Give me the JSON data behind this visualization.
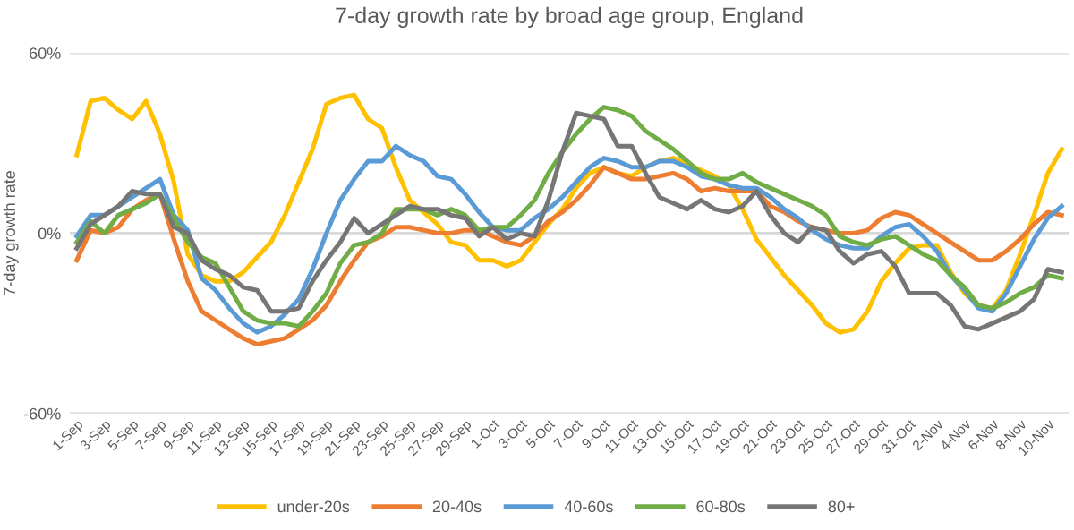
{
  "chart_data": {
    "type": "line",
    "title": "7-day growth rate by broad age group, England",
    "ylabel": "7-day growth rate",
    "categories": [
      "1-Sep",
      null,
      "3-Sep",
      null,
      "5-Sep",
      null,
      "7-Sep",
      null,
      "9-Sep",
      null,
      "11-Sep",
      null,
      "13-Sep",
      null,
      "15-Sep",
      null,
      "17-Sep",
      null,
      "19-Sep",
      null,
      "21-Sep",
      null,
      "23-Sep",
      null,
      "25-Sep",
      null,
      "27-Sep",
      null,
      "29-Sep",
      null,
      "1-Oct",
      null,
      "3-Oct",
      null,
      "5-Oct",
      null,
      "7-Oct",
      null,
      "9-Oct",
      null,
      "11-Oct",
      null,
      "13-Oct",
      null,
      "15-Oct",
      null,
      "17-Oct",
      null,
      "19-Oct",
      null,
      "21-Oct",
      null,
      "23-Oct",
      null,
      "25-Oct",
      null,
      "27-Oct",
      null,
      "29-Oct",
      null,
      "31-Oct",
      null,
      "2-Nov",
      null,
      "4-Nov",
      null,
      "6-Nov",
      null,
      "8-Nov",
      null,
      "10-Nov",
      null
    ],
    "series": [
      {
        "name": "under-20s",
        "color": "#ffc000",
        "values": [
          26,
          44,
          45,
          41,
          38,
          44,
          33,
          17,
          -7,
          -14,
          -16,
          -16,
          -13,
          -8,
          -3,
          6,
          17,
          28,
          43,
          45,
          46,
          38,
          35,
          22,
          11,
          7,
          3,
          -3,
          -4,
          -9,
          -9,
          -11,
          -9,
          -3,
          3,
          8,
          15,
          20,
          22,
          20,
          19,
          22,
          24,
          25,
          23,
          21,
          19,
          16,
          8,
          -2,
          -8,
          -14,
          -19,
          -24,
          -30,
          -33,
          -32,
          -26,
          -16,
          -10,
          -5,
          -4,
          -4,
          -13,
          -20,
          -24,
          -25,
          -19,
          -7,
          6,
          20,
          28
        ]
      },
      {
        "name": "20-40s",
        "color": "#ed7d31",
        "values": [
          -9,
          1,
          0,
          2,
          8,
          11,
          13,
          -2,
          -16,
          -26,
          -29,
          -32,
          -35,
          -37,
          -36,
          -35,
          -32,
          -29,
          -24,
          -16,
          -9,
          -3,
          -1,
          2,
          2,
          1,
          0,
          0,
          1,
          1,
          -1,
          -3,
          -4,
          -1,
          4,
          7,
          11,
          16,
          22,
          20,
          18,
          18,
          19,
          20,
          18,
          14,
          15,
          14,
          14,
          14,
          9,
          7,
          4,
          2,
          1,
          0,
          0,
          1,
          5,
          7,
          6,
          3,
          0,
          -3,
          -6,
          -9,
          -9,
          -6,
          -2,
          3,
          7,
          6
        ]
      },
      {
        "name": "40-60s",
        "color": "#5b9bd5",
        "values": [
          -1,
          6,
          6,
          9,
          12,
          15,
          18,
          6,
          1,
          -15,
          -19,
          -25,
          -30,
          -33,
          -31,
          -27,
          -22,
          -12,
          0,
          11,
          18,
          24,
          24,
          29,
          26,
          24,
          19,
          18,
          13,
          7,
          2,
          1,
          1,
          5,
          8,
          12,
          17,
          22,
          25,
          24,
          22,
          22,
          24,
          24,
          22,
          19,
          18,
          16,
          15,
          15,
          12,
          8,
          5,
          1,
          -2,
          -4,
          -5,
          -5,
          -1,
          2,
          3,
          -1,
          -6,
          -14,
          -19,
          -25,
          -26,
          -20,
          -11,
          -2,
          5,
          9
        ]
      },
      {
        "name": "60-80s",
        "color": "#70ad47",
        "values": [
          -3,
          4,
          0,
          6,
          8,
          10,
          13,
          5,
          -3,
          -8,
          -10,
          -18,
          -26,
          -29,
          -30,
          -30,
          -31,
          -26,
          -20,
          -10,
          -4,
          -3,
          0,
          8,
          8,
          8,
          6,
          8,
          6,
          1,
          2,
          2,
          6,
          11,
          20,
          27,
          33,
          38,
          42,
          41,
          39,
          34,
          31,
          28,
          24,
          20,
          18,
          18,
          20,
          17,
          15,
          13,
          11,
          9,
          6,
          -1,
          -3,
          -4,
          -2,
          -1,
          -4,
          -7,
          -9,
          -14,
          -18,
          -24,
          -25,
          -23,
          -20,
          -18,
          -14,
          -15
        ]
      },
      {
        "name": "80+",
        "color": "#767676",
        "values": [
          -5,
          3,
          6,
          9,
          14,
          13,
          13,
          2,
          0,
          -9,
          -12,
          -14,
          -18,
          -19,
          -26,
          -26,
          -25,
          -16,
          -9,
          -3,
          5,
          0,
          3,
          6,
          9,
          8,
          8,
          6,
          5,
          -1,
          2,
          -2,
          0,
          -1,
          11,
          27,
          40,
          39,
          38,
          29,
          29,
          20,
          12,
          10,
          8,
          11,
          8,
          7,
          9,
          14,
          6,
          0,
          -3,
          2,
          1,
          -6,
          -10,
          -7,
          -6,
          -11,
          -20,
          -20,
          -20,
          -24,
          -31,
          -32,
          -30,
          -28,
          -26,
          -22,
          -12,
          -13
        ]
      }
    ],
    "ylim": [
      -60,
      60
    ],
    "yticks": [
      {
        "value": -60,
        "label": "-60%"
      },
      {
        "value": 0,
        "label": "0%"
      },
      {
        "value": 60,
        "label": "60%"
      }
    ],
    "grid": "y",
    "legend": "bottom",
    "marker": "none",
    "line_style": "solid"
  }
}
